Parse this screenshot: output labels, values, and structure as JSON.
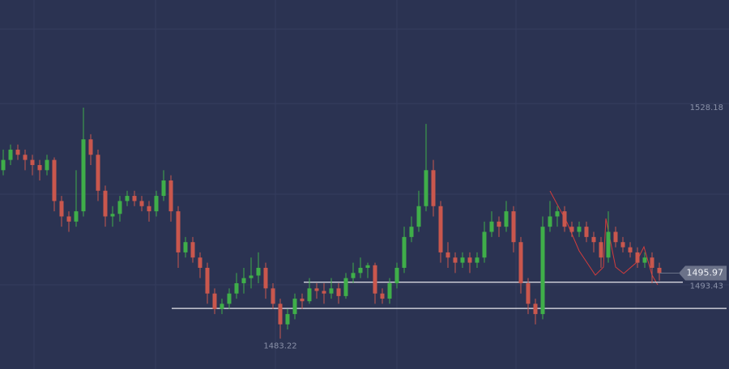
{
  "chart_data": {
    "type": "candlestick",
    "ylim": [
      1477.31,
      1549.12
    ],
    "up_color": "#3fae49",
    "down_color": "#c9574d",
    "background": "#2b3352",
    "ohlc": [
      [
        1516,
        1520,
        1515,
        1518
      ],
      [
        1518,
        1521,
        1517,
        1520
      ],
      [
        1520,
        1521,
        1518,
        1519
      ],
      [
        1519,
        1520,
        1516,
        1518
      ],
      [
        1518,
        1519,
        1515,
        1517
      ],
      [
        1517,
        1518,
        1514,
        1516
      ],
      [
        1516,
        1519,
        1515,
        1518
      ],
      [
        1518,
        1518.5,
        1508,
        1510
      ],
      [
        1510,
        1511,
        1505,
        1507
      ],
      [
        1507,
        1508,
        1504,
        1506
      ],
      [
        1506,
        1516,
        1505,
        1508
      ],
      [
        1508,
        1528.18,
        1507,
        1522
      ],
      [
        1522,
        1523,
        1517,
        1519
      ],
      [
        1519,
        1520,
        1510,
        1512
      ],
      [
        1512,
        1513,
        1505,
        1507
      ],
      [
        1507,
        1509,
        1505,
        1507.5
      ],
      [
        1507.5,
        1511,
        1506,
        1510
      ],
      [
        1510,
        1512,
        1509,
        1511
      ],
      [
        1511,
        1512,
        1509,
        1510
      ],
      [
        1510,
        1511,
        1508,
        1509
      ],
      [
        1509,
        1510,
        1506,
        1508
      ],
      [
        1508,
        1512,
        1507,
        1511
      ],
      [
        1511,
        1516,
        1510,
        1514
      ],
      [
        1514,
        1515,
        1506,
        1508
      ],
      [
        1508,
        1509,
        1497,
        1500
      ],
      [
        1500,
        1503,
        1499,
        1502
      ],
      [
        1502,
        1503,
        1498,
        1499
      ],
      [
        1499,
        1500,
        1495,
        1497
      ],
      [
        1497,
        1498,
        1490,
        1492
      ],
      [
        1492,
        1493,
        1488,
        1489
      ],
      [
        1489,
        1491,
        1488,
        1490
      ],
      [
        1490,
        1493,
        1489,
        1492
      ],
      [
        1492,
        1496,
        1491,
        1494
      ],
      [
        1494,
        1497,
        1492,
        1495
      ],
      [
        1495,
        1499,
        1493,
        1495.5
      ],
      [
        1495.5,
        1500,
        1494,
        1497
      ],
      [
        1497,
        1498,
        1491,
        1493
      ],
      [
        1493,
        1494,
        1489,
        1490
      ],
      [
        1490,
        1491,
        1483.22,
        1486
      ],
      [
        1486,
        1489,
        1485,
        1488
      ],
      [
        1488,
        1492,
        1487,
        1491
      ],
      [
        1491,
        1492,
        1489,
        1490.5
      ],
      [
        1490.5,
        1495,
        1490,
        1493
      ],
      [
        1493,
        1494,
        1491,
        1492.5
      ],
      [
        1492.5,
        1494,
        1490,
        1492
      ],
      [
        1492,
        1495,
        1491,
        1493
      ],
      [
        1493,
        1494,
        1490,
        1491.5
      ],
      [
        1491.5,
        1496,
        1491,
        1495
      ],
      [
        1495,
        1498,
        1494,
        1496
      ],
      [
        1496,
        1499,
        1495,
        1497
      ],
      [
        1497,
        1498,
        1495,
        1497.5
      ],
      [
        1497.5,
        1498,
        1490,
        1492
      ],
      [
        1492,
        1493,
        1490,
        1491
      ],
      [
        1491,
        1495,
        1490,
        1494
      ],
      [
        1494,
        1498,
        1493,
        1497
      ],
      [
        1497,
        1505,
        1496,
        1503
      ],
      [
        1503,
        1507,
        1502,
        1505
      ],
      [
        1505,
        1512,
        1504,
        1509
      ],
      [
        1509,
        1525,
        1508,
        1516
      ],
      [
        1516,
        1518,
        1507,
        1509
      ],
      [
        1509,
        1510,
        1498,
        1500
      ],
      [
        1500,
        1502,
        1497,
        1499
      ],
      [
        1499,
        1500,
        1496,
        1498
      ],
      [
        1498,
        1500,
        1497,
        1499
      ],
      [
        1499,
        1500,
        1496,
        1498
      ],
      [
        1498,
        1500,
        1497,
        1499
      ],
      [
        1499,
        1506,
        1498,
        1504
      ],
      [
        1504,
        1508,
        1503,
        1506
      ],
      [
        1506,
        1507,
        1503,
        1505
      ],
      [
        1505,
        1510,
        1504,
        1508
      ],
      [
        1508,
        1509,
        1500,
        1502
      ],
      [
        1502,
        1503,
        1492,
        1494
      ],
      [
        1494,
        1495,
        1488,
        1490
      ],
      [
        1490,
        1491,
        1486,
        1488
      ],
      [
        1488,
        1507,
        1487,
        1505
      ],
      [
        1505,
        1510,
        1504,
        1507
      ],
      [
        1507,
        1509,
        1505,
        1508
      ],
      [
        1508,
        1509,
        1504,
        1505
      ],
      [
        1505,
        1506,
        1503,
        1504
      ],
      [
        1504,
        1506,
        1503,
        1505
      ],
      [
        1505,
        1506,
        1502,
        1503
      ],
      [
        1503,
        1504,
        1500,
        1502
      ],
      [
        1502,
        1503,
        1497,
        1499
      ],
      [
        1499,
        1508,
        1498,
        1504
      ],
      [
        1504,
        1505,
        1501,
        1502
      ],
      [
        1502,
        1503,
        1500,
        1501
      ],
      [
        1501,
        1502,
        1499,
        1500
      ],
      [
        1500,
        1501,
        1497,
        1498
      ],
      [
        1498,
        1500,
        1497,
        1499
      ],
      [
        1499,
        1500,
        1494,
        1497
      ],
      [
        1497,
        1498,
        1494.5,
        1495.97
      ]
    ],
    "levels": [
      1494.2,
      1489.1
    ],
    "annotations": {
      "high": 1528.18,
      "low": 1483.22,
      "last": 1495.97,
      "level_label": 1493.43
    }
  }
}
